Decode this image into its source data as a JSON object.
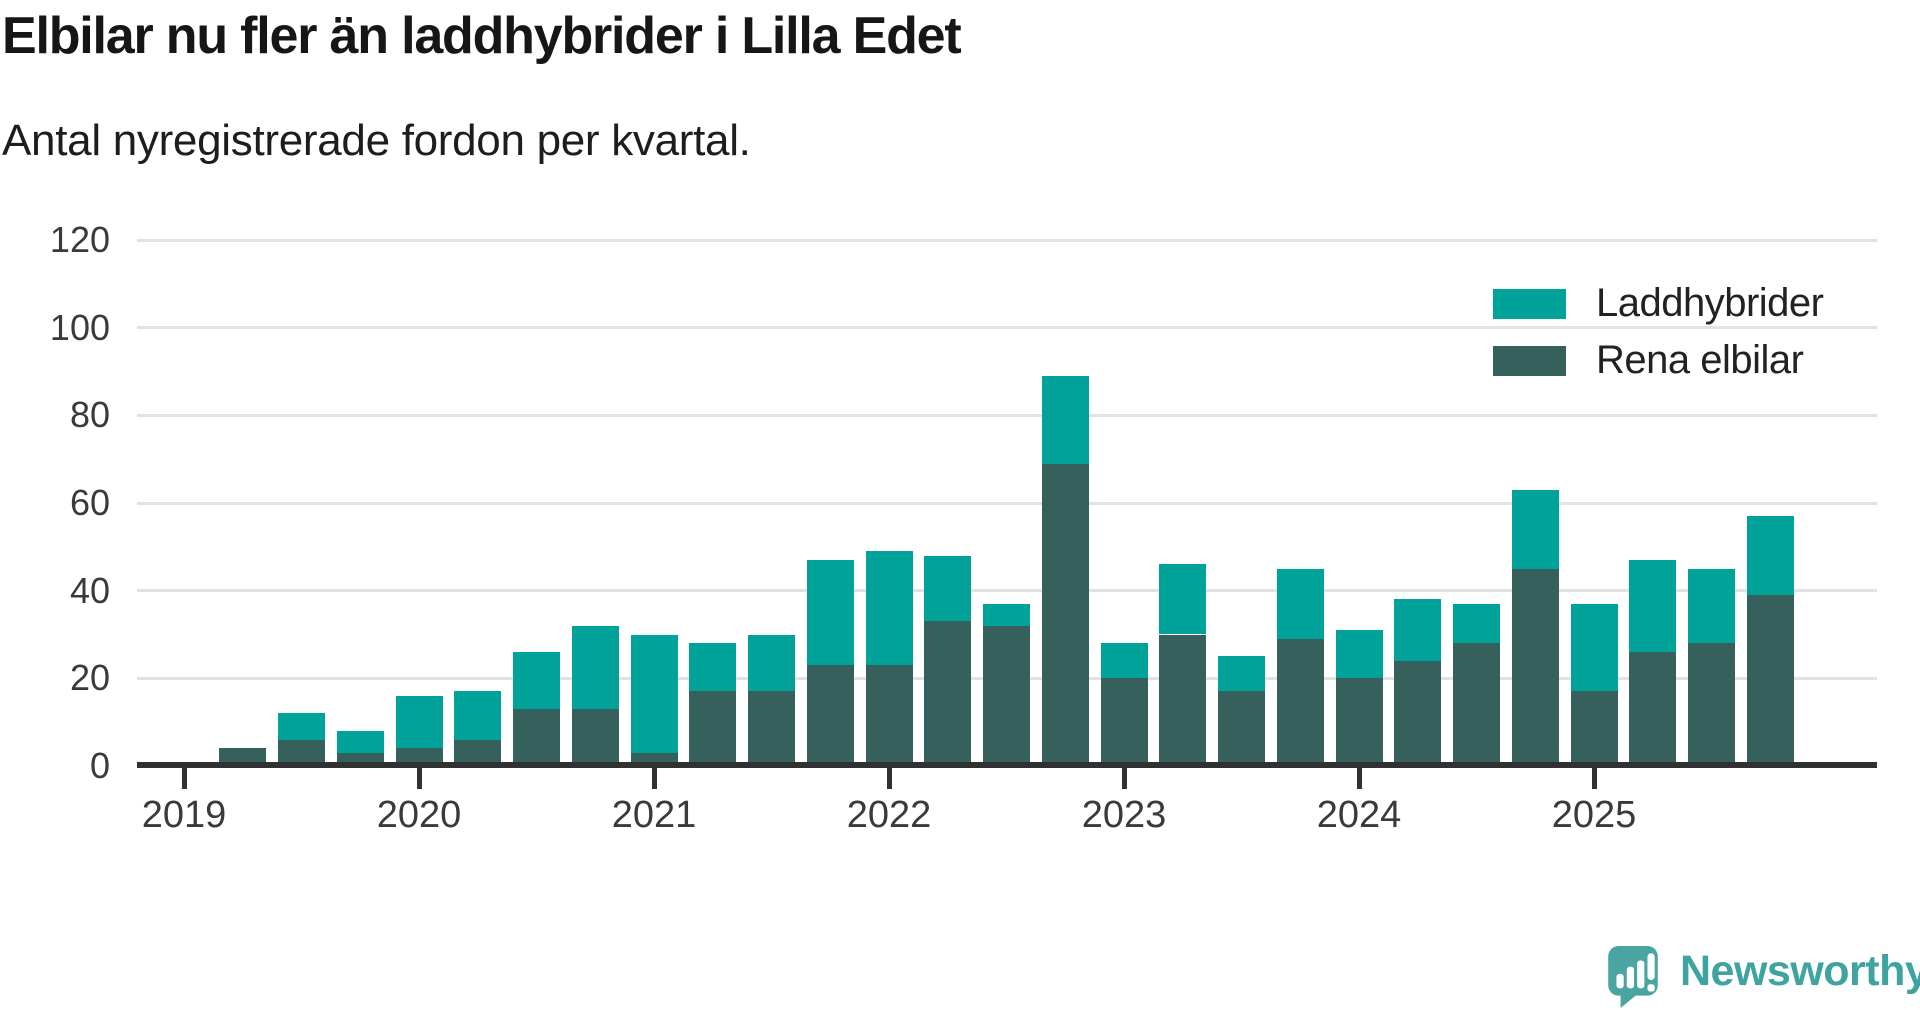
{
  "header": {
    "title": "Elbilar nu fler än laddhybrider i Lilla Edet",
    "subtitle": "Antal nyregistrerade fordon per kvartal."
  },
  "chart_data": {
    "type": "bar",
    "stacked": true,
    "title": "Elbilar nu fler än laddhybrider i Lilla Edet",
    "subtitle": "Antal nyregistrerade fordon per kvartal.",
    "categories": [
      "2019 Q1",
      "2019 Q2",
      "2019 Q3",
      "2019 Q4",
      "2020 Q1",
      "2020 Q2",
      "2020 Q3",
      "2020 Q4",
      "2021 Q1",
      "2021 Q2",
      "2021 Q3",
      "2021 Q4",
      "2022 Q1",
      "2022 Q2",
      "2022 Q3",
      "2022 Q4",
      "2023 Q1",
      "2023 Q2",
      "2023 Q3",
      "2023 Q4",
      "2024 Q1",
      "2024 Q2",
      "2024 Q3",
      "2024 Q4",
      "2025 Q1",
      "2025 Q2",
      "2025 Q3",
      "2025 Q4"
    ],
    "series": [
      {
        "name": "Laddhybrider",
        "color": "#00a29a",
        "values": [
          0,
          0,
          6,
          5,
          12,
          11,
          13,
          19,
          27,
          11,
          13,
          24,
          26,
          15,
          5,
          20,
          8,
          16,
          8,
          16,
          11,
          14,
          9,
          18,
          20,
          21,
          17,
          18
        ]
      },
      {
        "name": "Rena elbilar",
        "color": "#36605b",
        "values": [
          0,
          4,
          6,
          3,
          4,
          6,
          13,
          13,
          3,
          17,
          17,
          23,
          23,
          33,
          32,
          69,
          20,
          30,
          17,
          29,
          20,
          24,
          28,
          45,
          17,
          26,
          28,
          39
        ]
      }
    ],
    "stack_order_bottom_to_top": [
      "Rena elbilar",
      "Laddhybrider"
    ],
    "ylim": [
      0,
      120
    ],
    "yticks": [
      0,
      20,
      40,
      60,
      80,
      100,
      120
    ],
    "xtick_labels": [
      "2019",
      "2020",
      "2021",
      "2022",
      "2023",
      "2024",
      "2025"
    ],
    "grid": "horizontal",
    "legend_position": "top-right",
    "xlabel": "",
    "ylabel": ""
  },
  "legend": {
    "items": [
      {
        "label": "Laddhybrider",
        "color": "#00a29a"
      },
      {
        "label": "Rena elbilar",
        "color": "#36605b"
      }
    ]
  },
  "branding": {
    "logo_text": "Newsworthy",
    "logo_color": "#3fa3a0",
    "logo_icon": "speech-bubble-bar-chart"
  },
  "colors": {
    "accent_teal": "#00a29a",
    "dark_teal": "#36605b",
    "gridline": "#e2e2e2",
    "axis": "#2f3133",
    "text": "#1d1d1d"
  }
}
